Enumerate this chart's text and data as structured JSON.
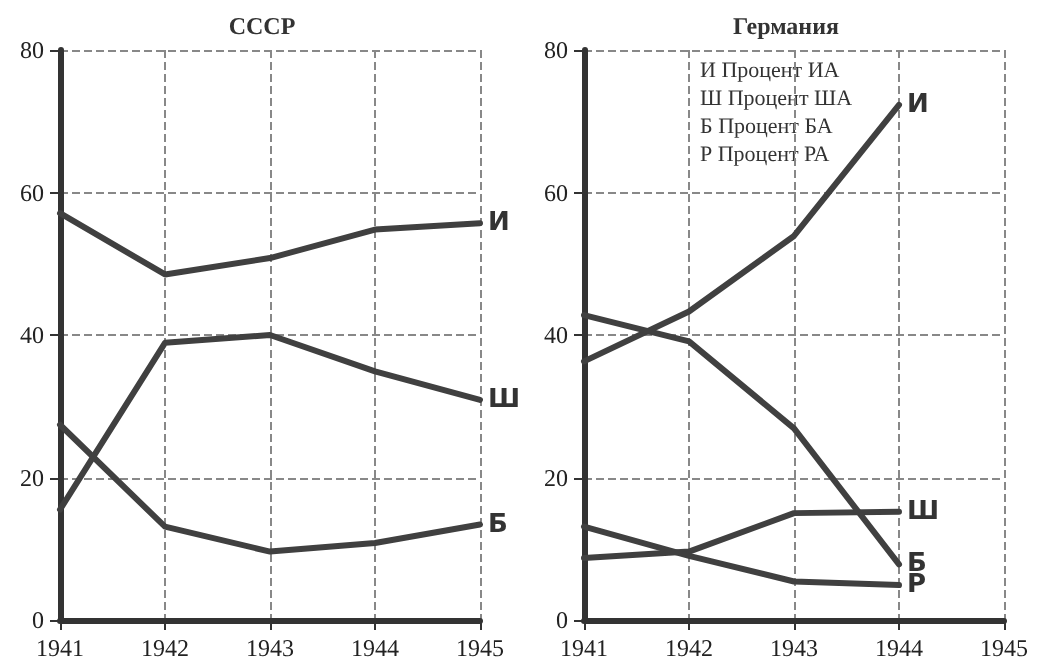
{
  "chart_data": [
    {
      "type": "line",
      "title": "СССР",
      "x": [
        1941,
        1942,
        1943,
        1944,
        1945
      ],
      "xlim": [
        1941,
        1945
      ],
      "xticks": [
        1941,
        1942,
        1943,
        1944,
        1945
      ],
      "ylim": [
        0,
        80
      ],
      "yticks": [
        0,
        20,
        40,
        60,
        80
      ],
      "grid": true,
      "legend": false,
      "marker": "none",
      "line_style": "solid",
      "series": [
        {
          "name": "И",
          "color": "#404040",
          "values": [
            57.1,
            48.5,
            50.8,
            54.8,
            55.7
          ]
        },
        {
          "name": "Ш",
          "color": "#404040",
          "values": [
            15.5,
            38.9,
            40,
            34.9,
            30.9
          ]
        },
        {
          "name": "Б",
          "color": "#404040",
          "values": [
            27.4,
            13.1,
            9.6,
            10.8,
            13.4
          ]
        }
      ]
    },
    {
      "type": "line",
      "title": "Германия",
      "x": [
        1941,
        1942,
        1943,
        1944
      ],
      "xlim": [
        1941,
        1945
      ],
      "xticks": [
        1941,
        1942,
        1943,
        1944,
        1945
      ],
      "ylim": [
        0,
        80
      ],
      "yticks": [
        0,
        20,
        40,
        60,
        80
      ],
      "grid": true,
      "legend": false,
      "marker": "none",
      "line_style": "solid",
      "annotations": [
        "И Процент ИА",
        "Ш Процент ША",
        "Б Процент БА",
        "Р Процент РА"
      ],
      "series": [
        {
          "name": "И",
          "color": "#404040",
          "values": [
            36.3,
            43.3,
            53.9,
            72.3
          ]
        },
        {
          "name": "Ш",
          "color": "#404040",
          "values": [
            8.7,
            9.6,
            15,
            15.2
          ]
        },
        {
          "name": "Б",
          "color": "#404040",
          "values": [
            42.8,
            39.1,
            26.9,
            7.8
          ]
        },
        {
          "name": "Р",
          "color": "#404040",
          "values": [
            13.1,
            9,
            5.4,
            4.9
          ]
        }
      ]
    }
  ]
}
